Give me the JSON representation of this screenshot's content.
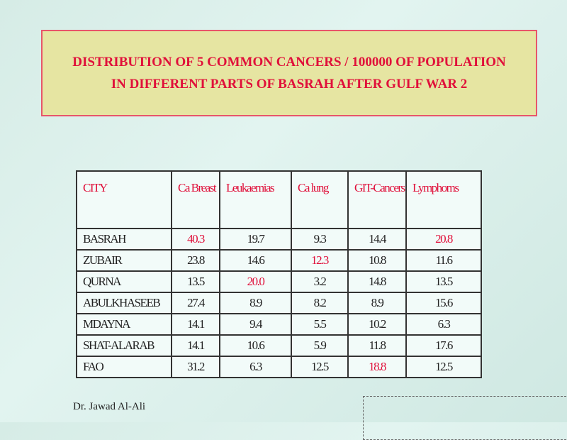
{
  "title": "DISTRIBUTION OF 5 COMMON CANCERS / 100000 OF POPULATION IN DIFFERENT PARTS OF BASRAH AFTER GULF WAR 2",
  "table": {
    "header": [
      "CITY",
      "Ca Breast",
      "Leukaemias",
      "Ca lung",
      "GIT-Cancers",
      "Lymphoms"
    ],
    "rows": [
      [
        "BASRAH",
        "40.3",
        "19.7",
        "9.3",
        "14.4",
        "20.8"
      ],
      [
        "ZUBAIR",
        "23.8",
        "14.6",
        "12.3",
        "10.8",
        "11.6"
      ],
      [
        "QURNA",
        "13.5",
        "20.0",
        "3.2",
        "14.8",
        "13.5"
      ],
      [
        "ABULKHASEEB",
        "27.4",
        "8.9",
        "8.2",
        "8.9",
        "15.6"
      ],
      [
        "MDAYNA",
        "14.1",
        "9.4",
        "5.5",
        "10.2",
        "6.3"
      ],
      [
        "SHAT-ALARAB",
        "14.1",
        "10.6",
        "5.9",
        "11.8",
        "17.6"
      ],
      [
        "FAO",
        "31.2",
        "6.3",
        "12.5",
        "18.8",
        "12.5"
      ]
    ]
  },
  "author": "Dr. Jawad Al-Ali"
}
